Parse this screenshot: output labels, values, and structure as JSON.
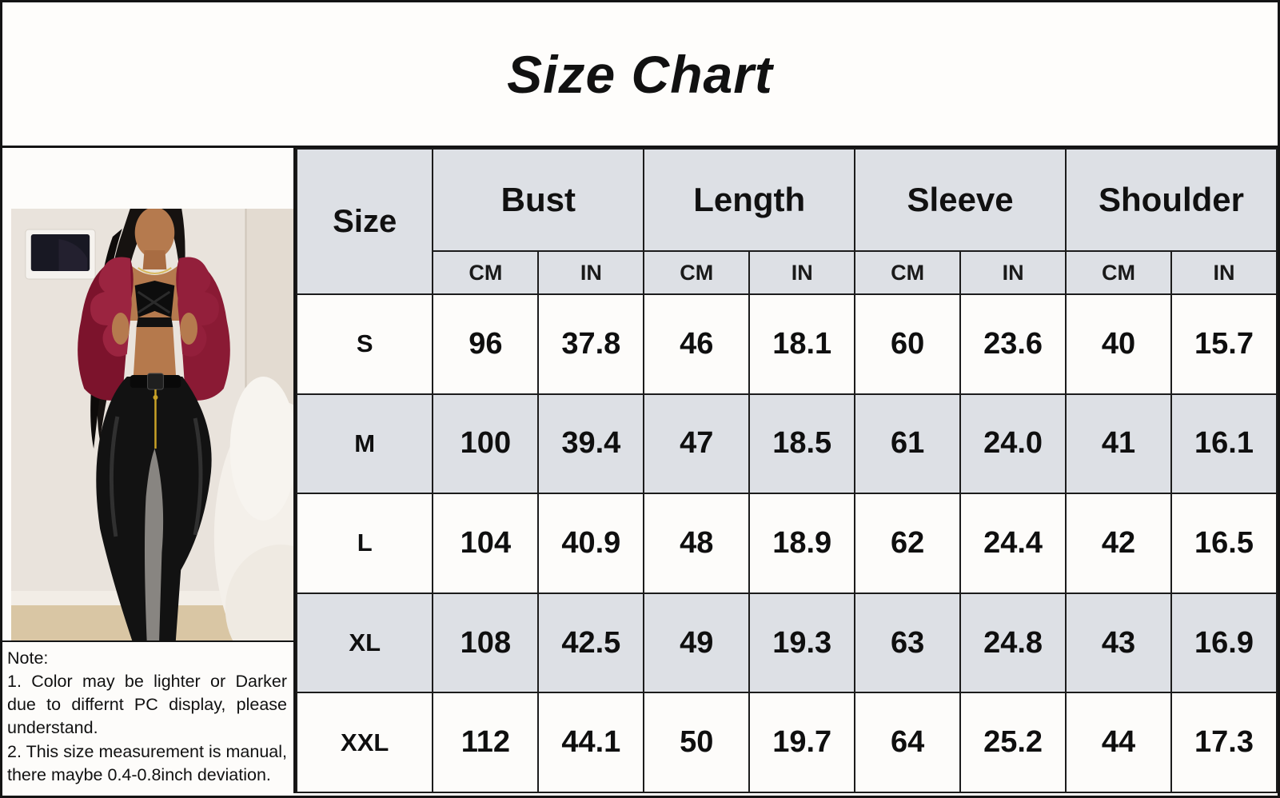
{
  "title": "Size Chart",
  "note": {
    "title": "Note:",
    "lines": [
      "1. Color may be lighter or Darker due to differnt PC display, please understand.",
      "2. This size measurement is manual, there maybe 0.4-0.8inch deviation."
    ]
  },
  "photo": {
    "description": "model wearing burgundy faux-fur cropped jacket, black bra and black patent leather pants in a beige room with wall TV and white fur chair",
    "jacket_color": "#84192f",
    "pants_color": "#141414",
    "wall_color": "#e9e3dc"
  },
  "chart_data": {
    "type": "table",
    "title": "Size Chart",
    "size_header": "Size",
    "column_groups": [
      "Bust",
      "Length",
      "Sleeve",
      "Shoulder"
    ],
    "unit_headers": [
      "CM",
      "IN"
    ],
    "rows": [
      {
        "size": "S",
        "values": [
          "96",
          "37.8",
          "46",
          "18.1",
          "60",
          "23.6",
          "40",
          "15.7"
        ]
      },
      {
        "size": "M",
        "values": [
          "100",
          "39.4",
          "47",
          "18.5",
          "61",
          "24.0",
          "41",
          "16.1"
        ]
      },
      {
        "size": "L",
        "values": [
          "104",
          "40.9",
          "48",
          "18.9",
          "62",
          "24.4",
          "42",
          "16.5"
        ]
      },
      {
        "size": "XL",
        "values": [
          "108",
          "42.5",
          "49",
          "19.3",
          "63",
          "24.8",
          "43",
          "16.9"
        ]
      },
      {
        "size": "XXL",
        "values": [
          "112",
          "44.1",
          "50",
          "19.7",
          "64",
          "25.2",
          "44",
          "17.3"
        ]
      }
    ],
    "shaded_row_color": "#dde0e5",
    "header_color": "#dde0e5",
    "layout": "Size column + 4 measurement groups each split CM/IN; rows alternate white/gray starting white"
  }
}
